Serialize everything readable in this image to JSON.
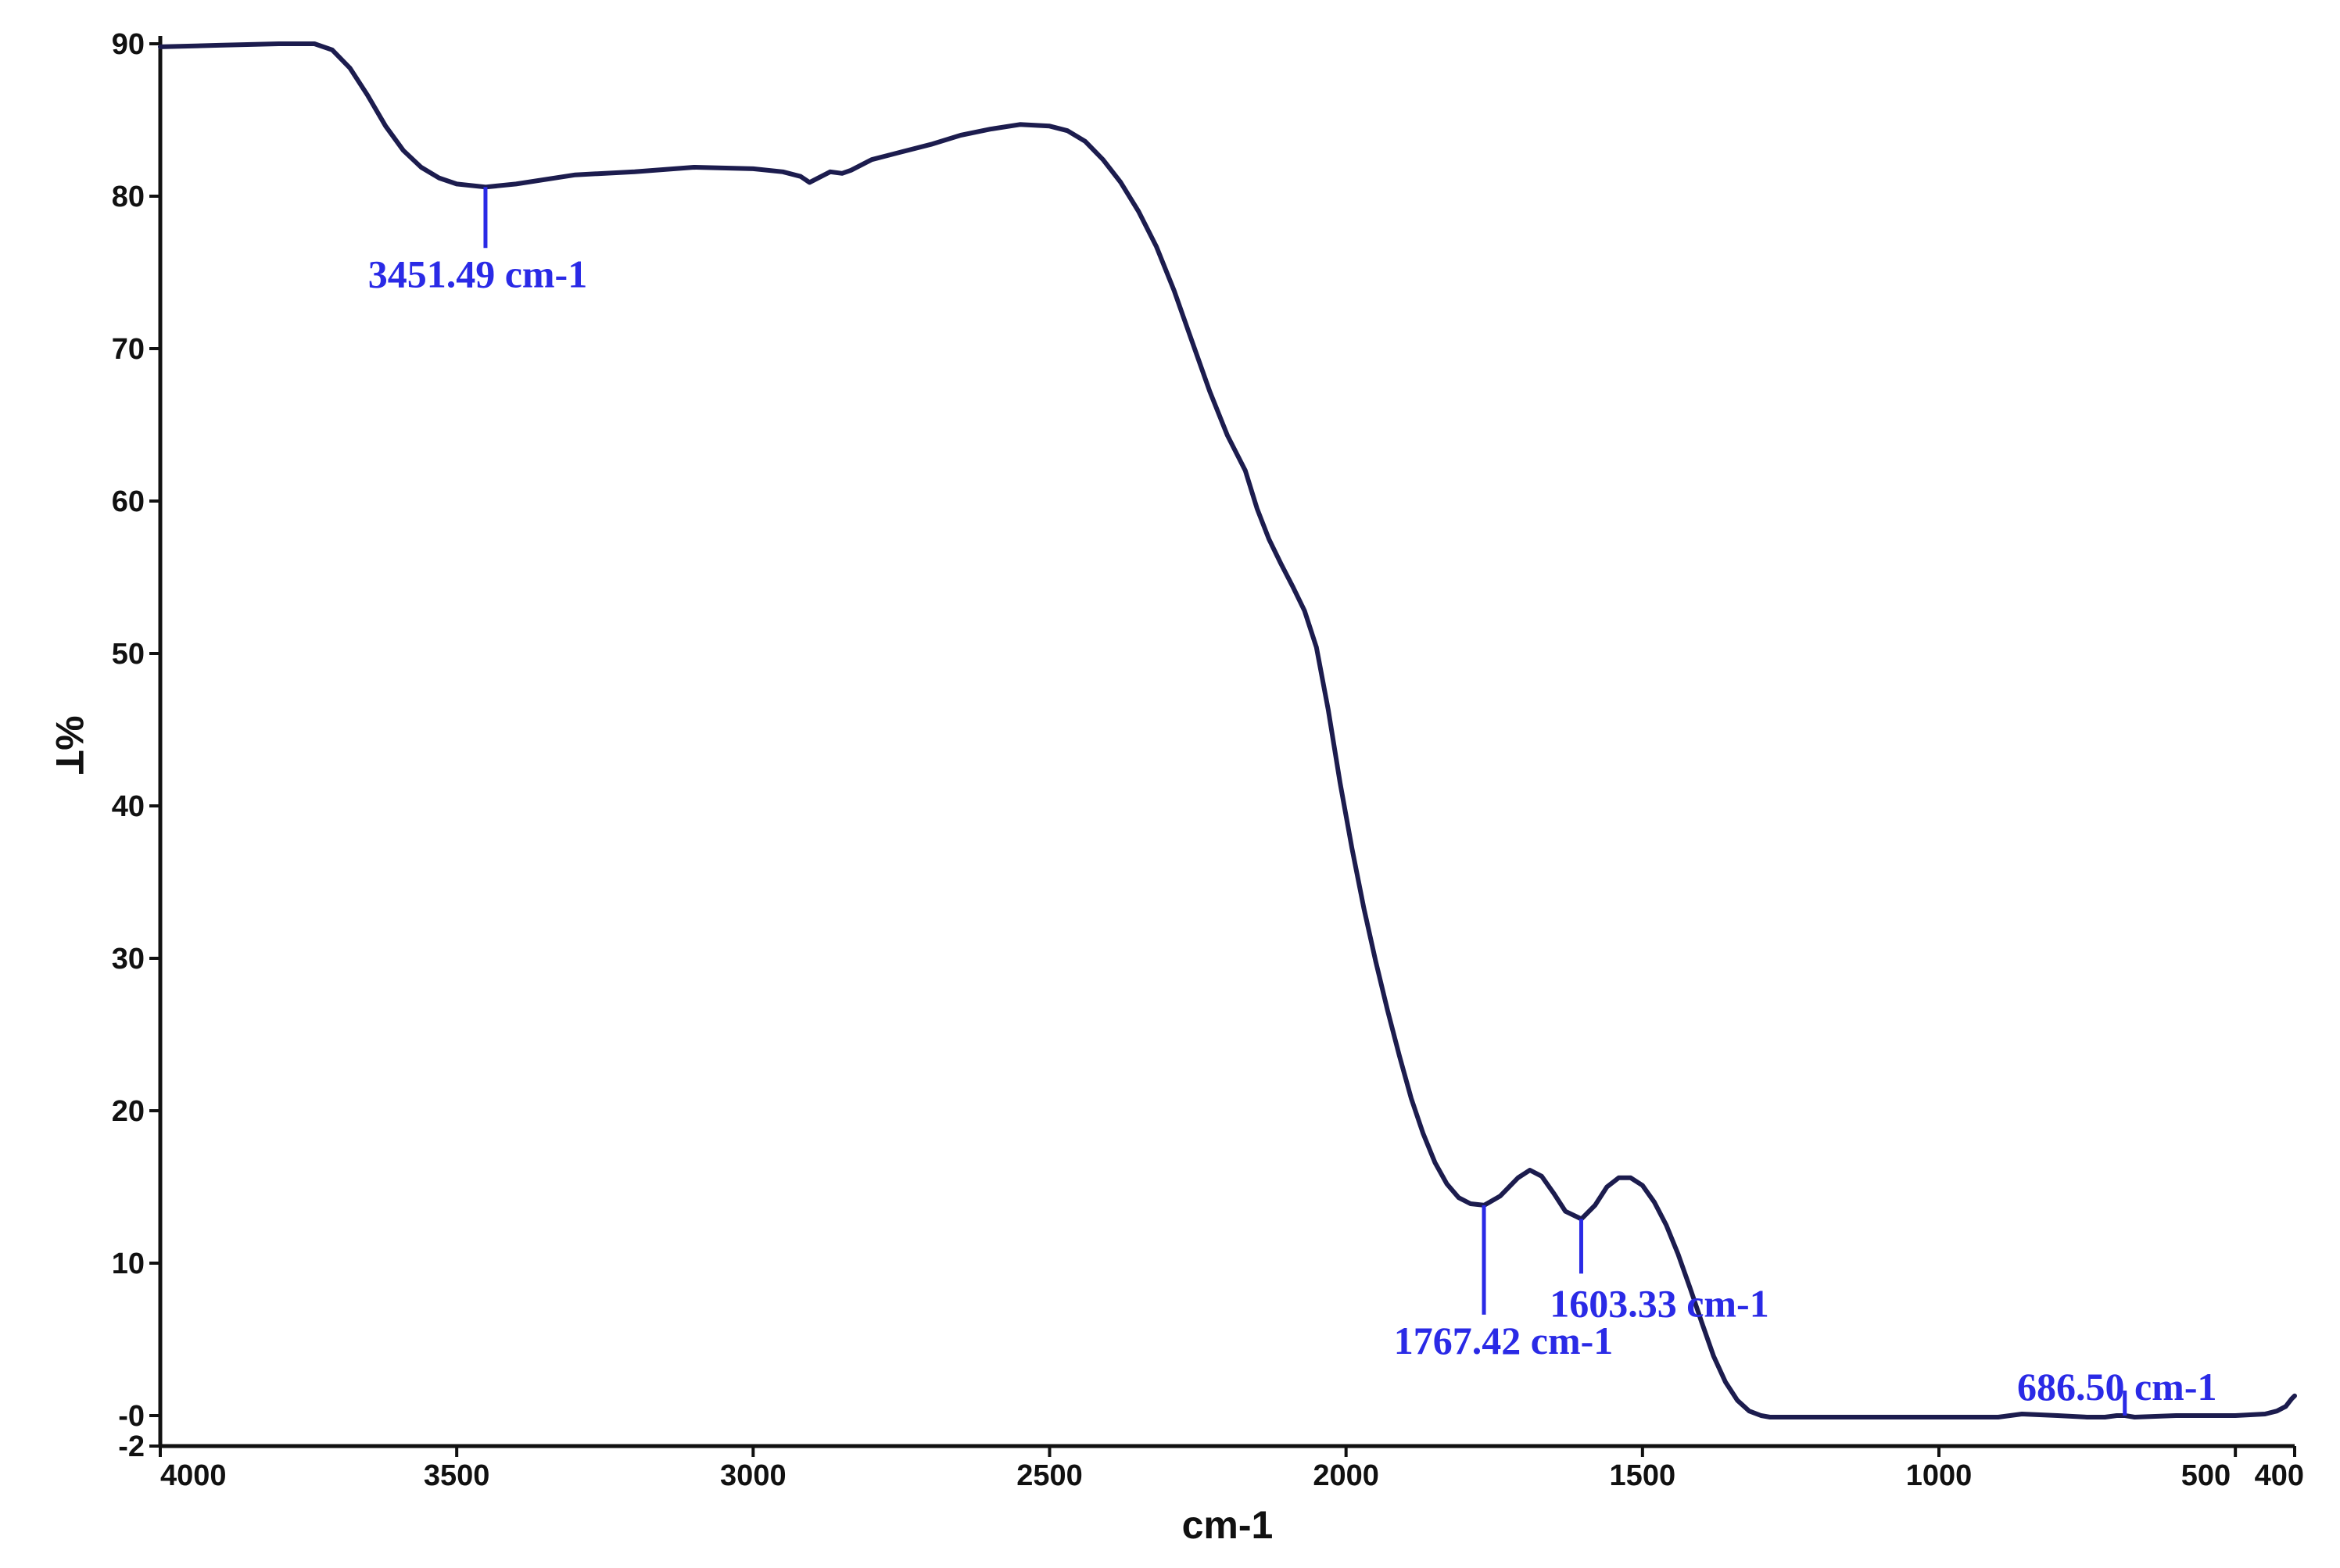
{
  "colors": {
    "curve": "#1c1c4e",
    "annotation": "#2a2ae6",
    "axis": "#111111"
  },
  "chart_data": {
    "type": "line",
    "xlabel": "cm-1",
    "ylabel": "%T",
    "xlim": [
      4000,
      400
    ],
    "ylim": [
      -2,
      90
    ],
    "x_ticks": [
      4000,
      3500,
      3000,
      2500,
      2000,
      1500,
      1000,
      500,
      400
    ],
    "x_tick_labels": [
      "4000",
      "3500",
      "3000",
      "2500",
      "2000",
      "1500",
      "1000",
      "500",
      "400"
    ],
    "y_ticks": [
      90,
      80,
      70,
      60,
      50,
      40,
      30,
      20,
      10,
      0,
      -2
    ],
    "y_tick_labels": [
      "90",
      "80",
      "70",
      "60",
      "50",
      "40",
      "30",
      "20",
      "10",
      "-0",
      "-2"
    ],
    "grid": false,
    "series": [
      {
        "x": [
          4000,
          3900,
          3800,
          3740,
          3710,
          3680,
          3650,
          3620,
          3590,
          3560,
          3530,
          3500,
          3451,
          3400,
          3300,
          3200,
          3100,
          3000,
          2950,
          2920,
          2905,
          2890,
          2870,
          2850,
          2835,
          2800,
          2750,
          2700,
          2650,
          2600,
          2550,
          2500,
          2470,
          2440,
          2410,
          2380,
          2350,
          2320,
          2290,
          2260,
          2230,
          2200,
          2170,
          2150,
          2130,
          2110,
          2090,
          2070,
          2050,
          2030,
          2010,
          1990,
          1970,
          1950,
          1930,
          1910,
          1890,
          1870,
          1850,
          1830,
          1810,
          1790,
          1767,
          1740,
          1710,
          1690,
          1670,
          1650,
          1630,
          1603,
          1580,
          1560,
          1540,
          1520,
          1500,
          1480,
          1460,
          1440,
          1420,
          1400,
          1380,
          1360,
          1340,
          1320,
          1300,
          1285,
          1270,
          1250,
          1200,
          1100,
          1000,
          900,
          860,
          800,
          750,
          720,
          700,
          686,
          670,
          600,
          500,
          450,
          430,
          415,
          405,
          400
        ],
        "y": [
          89.8,
          89.9,
          90,
          90,
          89.6,
          88.4,
          86.6,
          84.6,
          83,
          81.9,
          81.2,
          80.8,
          80.6,
          80.8,
          81.4,
          81.6,
          81.9,
          81.8,
          81.6,
          81.3,
          80.9,
          81.2,
          81.6,
          81.5,
          81.7,
          82.4,
          82.9,
          83.4,
          84,
          84.4,
          84.7,
          84.6,
          84.3,
          83.6,
          82.4,
          80.9,
          79,
          76.7,
          73.8,
          70.5,
          67.2,
          64.3,
          62,
          59.5,
          57.5,
          55.9,
          54.4,
          52.8,
          50.4,
          46.3,
          41.5,
          37.2,
          33.3,
          29.8,
          26.6,
          23.6,
          20.8,
          18.5,
          16.6,
          15.2,
          14.3,
          13.9,
          13.8,
          14.4,
          15.6,
          16.1,
          15.7,
          14.6,
          13.4,
          12.9,
          13.8,
          15,
          15.6,
          15.6,
          15.1,
          14,
          12.5,
          10.6,
          8.4,
          6.1,
          3.9,
          2.2,
          1,
          0.3,
          0,
          -0.1,
          -0.1,
          -0.1,
          -0.1,
          -0.1,
          -0.1,
          -0.1,
          0.1,
          0,
          -0.1,
          -0.1,
          0,
          0,
          -0.1,
          0,
          0,
          0.1,
          0.3,
          0.6,
          1.1,
          1.3
        ]
      }
    ],
    "annotations": [
      {
        "label": "3451.49 cm-1",
        "x": 3451.49
      },
      {
        "label": "1767.42 cm-1",
        "x": 1767.42
      },
      {
        "label": "1603.33 cm-1",
        "x": 1603.33
      },
      {
        "label": "686.50 cm-1",
        "x": 686.5
      }
    ]
  }
}
